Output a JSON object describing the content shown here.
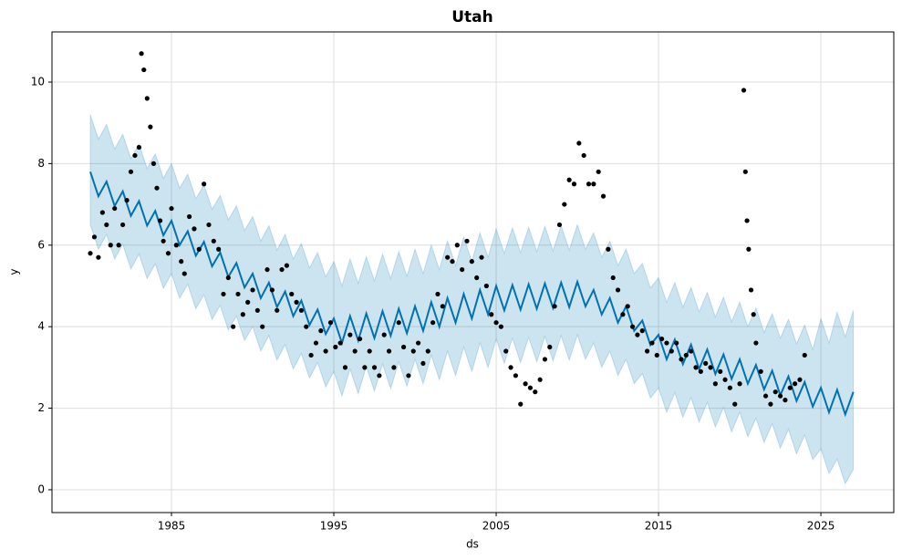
{
  "chart_data": {
    "type": "line",
    "title": "Utah",
    "xlabel": "ds",
    "ylabel": "y",
    "xlim": [
      1977.64,
      2029.49
    ],
    "ylim": [
      -0.56,
      11.23
    ],
    "xticks": [
      1985,
      1995,
      2005,
      2015,
      2025
    ],
    "yticks": [
      0,
      2,
      4,
      6,
      8,
      10
    ],
    "grid": true,
    "x": [
      1980,
      1980.5,
      1981,
      1981.5,
      1982,
      1982.5,
      1983,
      1983.5,
      1984,
      1984.5,
      1985,
      1985.5,
      1986,
      1986.5,
      1987,
      1987.5,
      1988,
      1988.5,
      1989,
      1989.5,
      1990,
      1990.5,
      1991,
      1991.5,
      1992,
      1992.5,
      1993,
      1993.5,
      1994,
      1994.5,
      1995,
      1995.5,
      1996,
      1996.5,
      1997,
      1997.5,
      1998,
      1998.5,
      1999,
      1999.5,
      2000,
      2000.5,
      2001,
      2001.5,
      2002,
      2002.5,
      2003,
      2003.5,
      2004,
      2004.5,
      2005,
      2005.5,
      2006,
      2006.5,
      2007,
      2007.5,
      2008,
      2008.5,
      2009,
      2009.5,
      2010,
      2010.5,
      2011,
      2011.5,
      2012,
      2012.5,
      2013,
      2013.5,
      2014,
      2014.5,
      2015,
      2015.5,
      2016,
      2016.5,
      2017,
      2017.5,
      2018,
      2018.5,
      2019,
      2019.5,
      2020,
      2020.5,
      2021,
      2021.5,
      2022,
      2022.5,
      2023,
      2023.5,
      2024,
      2024.5,
      2025,
      2025.5,
      2026,
      2026.5,
      2027
    ],
    "series": [
      {
        "color": "#0072B2",
        "values": [
          7.8,
          7.2,
          7.56,
          6.96,
          7.32,
          6.72,
          7.08,
          6.48,
          6.84,
          6.24,
          6.6,
          6.0,
          6.34,
          5.74,
          6.08,
          5.48,
          5.82,
          5.22,
          5.56,
          4.96,
          5.3,
          4.7,
          5.08,
          4.48,
          4.86,
          4.26,
          4.64,
          4.04,
          4.42,
          3.82,
          4.2,
          3.6,
          4.26,
          3.66,
          4.32,
          3.72,
          4.38,
          3.78,
          4.44,
          3.84,
          4.5,
          3.9,
          4.6,
          4.0,
          4.7,
          4.1,
          4.8,
          4.2,
          4.9,
          4.3,
          5.0,
          4.4,
          5.02,
          4.42,
          5.04,
          4.44,
          5.06,
          4.46,
          5.08,
          4.48,
          5.1,
          4.5,
          4.9,
          4.3,
          4.7,
          4.1,
          4.5,
          3.9,
          4.15,
          3.55,
          3.8,
          3.2,
          3.68,
          3.08,
          3.56,
          2.96,
          3.44,
          2.84,
          3.32,
          2.72,
          3.2,
          2.6,
          3.06,
          2.46,
          2.92,
          2.32,
          2.78,
          2.18,
          2.64,
          2.04,
          2.5,
          1.9,
          2.45,
          1.85,
          2.4
        ]
      }
    ],
    "band": {
      "color": "#0072B2",
      "upper": [
        9.2,
        8.6,
        8.96,
        8.36,
        8.72,
        8.12,
        8.48,
        7.88,
        8.24,
        7.64,
        8.0,
        7.4,
        7.74,
        7.14,
        7.48,
        6.88,
        7.22,
        6.62,
        6.96,
        6.36,
        6.7,
        6.1,
        6.48,
        5.88,
        6.26,
        5.66,
        6.04,
        5.44,
        5.82,
        5.22,
        5.6,
        5.0,
        5.66,
        5.06,
        5.72,
        5.12,
        5.78,
        5.18,
        5.84,
        5.24,
        5.9,
        5.3,
        6.0,
        5.4,
        6.1,
        5.5,
        6.2,
        5.6,
        6.3,
        5.7,
        6.4,
        5.8,
        6.42,
        5.82,
        6.44,
        5.84,
        6.46,
        5.86,
        6.48,
        5.88,
        6.5,
        5.9,
        6.3,
        5.7,
        6.1,
        5.5,
        5.9,
        5.3,
        5.55,
        4.95,
        5.2,
        4.6,
        5.08,
        4.48,
        4.96,
        4.36,
        4.84,
        4.24,
        4.72,
        4.12,
        4.6,
        4.0,
        4.46,
        3.86,
        4.32,
        3.72,
        4.18,
        3.58,
        4.04,
        3.44,
        4.2,
        3.6,
        4.35,
        3.75,
        4.4
      ],
      "lower": [
        6.5,
        5.9,
        6.26,
        5.66,
        6.02,
        5.42,
        5.78,
        5.18,
        5.54,
        4.94,
        5.3,
        4.7,
        5.04,
        4.44,
        4.78,
        4.18,
        4.52,
        3.92,
        4.26,
        3.66,
        4.0,
        3.4,
        3.78,
        3.18,
        3.56,
        2.96,
        3.34,
        2.74,
        3.12,
        2.52,
        2.9,
        2.3,
        2.96,
        2.36,
        3.02,
        2.42,
        3.08,
        2.48,
        3.14,
        2.54,
        3.2,
        2.6,
        3.3,
        2.7,
        3.4,
        2.8,
        3.5,
        2.9,
        3.6,
        3.0,
        3.7,
        3.1,
        3.72,
        3.12,
        3.74,
        3.14,
        3.76,
        3.16,
        3.78,
        3.18,
        3.8,
        3.2,
        3.6,
        3.0,
        3.4,
        2.8,
        3.2,
        2.6,
        2.85,
        2.25,
        2.5,
        1.9,
        2.38,
        1.78,
        2.26,
        1.66,
        2.14,
        1.54,
        2.02,
        1.42,
        1.9,
        1.3,
        1.76,
        1.16,
        1.62,
        1.02,
        1.48,
        0.88,
        1.34,
        0.74,
        1.0,
        0.4,
        0.75,
        0.15,
        0.5
      ]
    },
    "points": {
      "color": "#000000",
      "x": [
        1980.0,
        1980.25,
        1980.5,
        1980.75,
        1981.0,
        1981.25,
        1981.5,
        1981.75,
        1982.0,
        1982.25,
        1982.5,
        1982.75,
        1983.0,
        1983.15,
        1983.3,
        1983.5,
        1983.7,
        1983.9,
        1984.1,
        1984.3,
        1984.5,
        1984.8,
        1985.0,
        1985.3,
        1985.6,
        1985.8,
        1986.1,
        1986.4,
        1986.7,
        1987.0,
        1987.3,
        1987.6,
        1987.9,
        1988.2,
        1988.5,
        1988.8,
        1989.1,
        1989.4,
        1989.7,
        1990.0,
        1990.3,
        1990.6,
        1990.9,
        1991.2,
        1991.5,
        1991.8,
        1992.1,
        1992.4,
        1992.7,
        1993.0,
        1993.3,
        1993.6,
        1993.9,
        1994.2,
        1994.5,
        1994.8,
        1995.1,
        1995.4,
        1995.7,
        1996.0,
        1996.3,
        1996.6,
        1996.9,
        1997.2,
        1997.5,
        1997.8,
        1998.1,
        1998.4,
        1998.7,
        1999.0,
        1999.3,
        1999.6,
        1999.9,
        2000.2,
        2000.5,
        2000.8,
        2001.1,
        2001.4,
        2001.7,
        2002.0,
        2002.3,
        2002.6,
        2002.9,
        2003.2,
        2003.5,
        2003.8,
        2004.1,
        2004.4,
        2004.7,
        2005.0,
        2005.3,
        2005.6,
        2005.9,
        2006.2,
        2006.5,
        2006.8,
        2007.1,
        2007.4,
        2007.7,
        2008.0,
        2008.3,
        2008.6,
        2008.9,
        2009.2,
        2009.5,
        2009.8,
        2010.1,
        2010.4,
        2010.7,
        2011.0,
        2011.3,
        2011.6,
        2011.9,
        2012.2,
        2012.5,
        2012.8,
        2013.1,
        2013.4,
        2013.7,
        2014.0,
        2014.3,
        2014.6,
        2014.9,
        2015.2,
        2015.5,
        2015.8,
        2016.1,
        2016.4,
        2016.7,
        2017.0,
        2017.3,
        2017.6,
        2017.9,
        2018.2,
        2018.5,
        2018.8,
        2019.1,
        2019.4,
        2019.7,
        2020.0,
        2020.25,
        2020.35,
        2020.45,
        2020.55,
        2020.7,
        2020.85,
        2021.0,
        2021.3,
        2021.6,
        2021.9,
        2022.2,
        2022.5,
        2022.8,
        2023.1,
        2023.4,
        2023.7,
        2024.0
      ],
      "values": [
        5.8,
        6.2,
        5.7,
        6.8,
        6.5,
        6.0,
        6.9,
        6.0,
        6.5,
        7.1,
        7.8,
        8.2,
        8.4,
        10.7,
        10.3,
        9.6,
        8.9,
        8.0,
        7.4,
        6.6,
        6.1,
        5.8,
        6.9,
        6.0,
        5.6,
        5.3,
        6.7,
        6.4,
        5.9,
        7.5,
        6.5,
        6.1,
        5.9,
        4.8,
        5.2,
        4.0,
        4.8,
        4.3,
        4.6,
        4.9,
        4.4,
        4.0,
        5.4,
        4.9,
        4.4,
        5.4,
        5.5,
        4.8,
        4.6,
        4.4,
        4.0,
        3.3,
        3.6,
        3.9,
        3.4,
        4.1,
        3.5,
        3.6,
        3.0,
        3.8,
        3.4,
        3.7,
        3.0,
        3.4,
        3.0,
        2.8,
        3.8,
        3.4,
        3.0,
        4.1,
        3.5,
        2.8,
        3.4,
        3.6,
        3.1,
        3.4,
        4.1,
        4.8,
        4.5,
        5.7,
        5.6,
        6.0,
        5.4,
        6.1,
        5.6,
        5.2,
        5.7,
        5.0,
        4.3,
        4.1,
        4.0,
        3.4,
        3.0,
        2.8,
        2.1,
        2.6,
        2.5,
        2.4,
        2.7,
        3.2,
        3.5,
        4.5,
        6.5,
        7.0,
        7.6,
        7.5,
        8.5,
        8.2,
        7.5,
        7.5,
        7.8,
        7.2,
        5.9,
        5.2,
        4.9,
        4.3,
        4.5,
        4.0,
        3.8,
        3.9,
        3.4,
        3.6,
        3.3,
        3.7,
        3.6,
        3.4,
        3.6,
        3.2,
        3.3,
        3.4,
        3.0,
        2.9,
        3.1,
        3.0,
        2.6,
        2.9,
        2.7,
        2.5,
        2.1,
        2.6,
        9.8,
        7.8,
        6.6,
        5.9,
        4.9,
        4.3,
        3.6,
        2.9,
        2.3,
        2.1,
        2.4,
        2.3,
        2.2,
        2.5,
        2.6,
        2.7,
        3.3
      ]
    }
  }
}
